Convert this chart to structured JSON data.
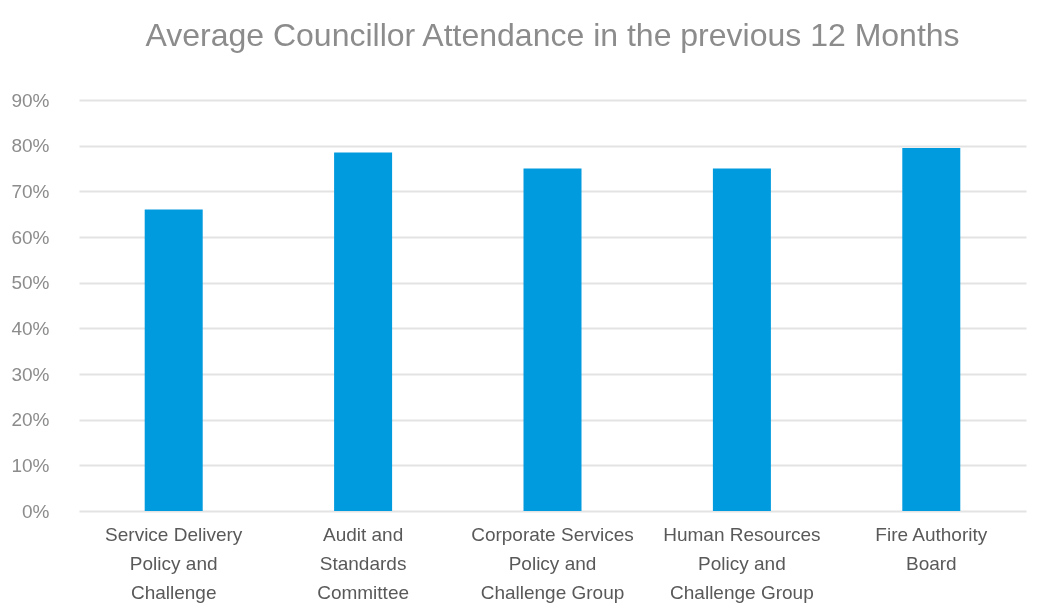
{
  "chart_data": {
    "type": "bar",
    "title": "Average Councillor Attendance in the previous 12 Months",
    "categories": [
      "Service Delivery Policy and Challenge",
      "Audit and Standards Committee",
      "Corporate Services Policy and Challenge Group",
      "Human Resources Policy and Challenge Group",
      "Fire Authority Board"
    ],
    "values": [
      66,
      78.5,
      75,
      75,
      79.5
    ],
    "color": "#009ade",
    "ylim": [
      0,
      90
    ],
    "yticks": [
      {
        "value": 0,
        "label": "0%"
      },
      {
        "value": 10,
        "label": "10%"
      },
      {
        "value": 20,
        "label": "20%"
      },
      {
        "value": 30,
        "label": "30%"
      },
      {
        "value": 40,
        "label": "40%"
      },
      {
        "value": 50,
        "label": "50%"
      },
      {
        "value": 60,
        "label": "60%"
      },
      {
        "value": 70,
        "label": "70%"
      },
      {
        "value": 80,
        "label": "80%"
      },
      {
        "value": 90,
        "label": "90%"
      }
    ],
    "grid": "y"
  }
}
